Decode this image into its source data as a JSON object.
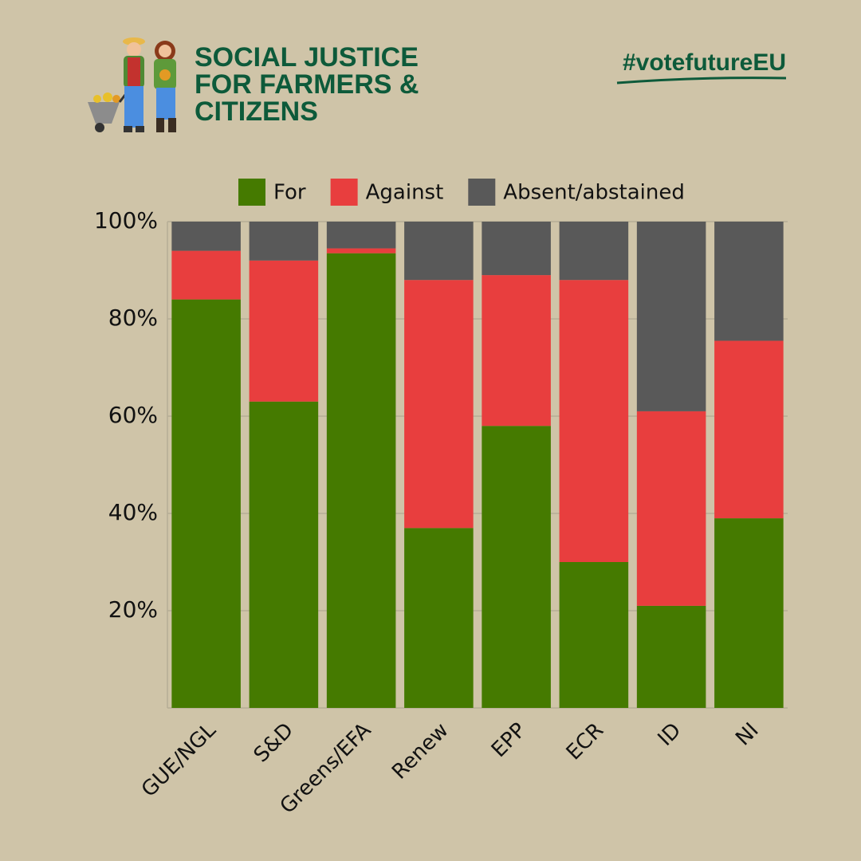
{
  "header": {
    "title": [
      "SOCIAL JUSTICE",
      "FOR FARMERS &",
      "CITIZENS"
    ],
    "hashtag": "#votefutureEU"
  },
  "chart_data": {
    "type": "stacked_bar",
    "categories": [
      "GUE/NGL",
      "S&D",
      "Greens/EFA",
      "Renew",
      "EPP",
      "ECR",
      "ID",
      "NI"
    ],
    "series": [
      {
        "name": "For",
        "color": "#457a00",
        "values": [
          84,
          63,
          93.5,
          37,
          58,
          30,
          21,
          39
        ]
      },
      {
        "name": "Against",
        "color": "#e83e3e",
        "values": [
          10,
          29,
          1,
          51,
          31,
          58,
          40,
          36.5
        ]
      },
      {
        "name": "Absent/abstained",
        "color": "#595959",
        "values": [
          6,
          8,
          5.5,
          12,
          11,
          12,
          39,
          24.5
        ]
      }
    ],
    "ylim": [
      0,
      100
    ],
    "yticks": [
      {
        "value": 20,
        "label": "20%"
      },
      {
        "value": 40,
        "label": "40%"
      },
      {
        "value": 60,
        "label": "60%"
      },
      {
        "value": 80,
        "label": "80%"
      },
      {
        "value": 100,
        "label": "100%"
      }
    ],
    "grid": true
  }
}
